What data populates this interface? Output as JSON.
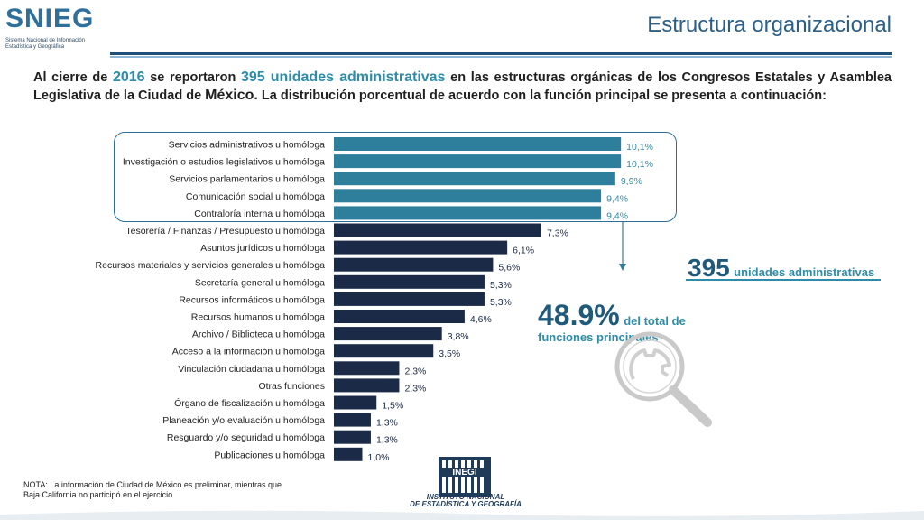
{
  "header": {
    "logo_text": "SNIEG",
    "logo_sub1": "Sistema Nacional de Información",
    "logo_sub2": "Estadística y Geográfica",
    "title": "Estructura organizacional"
  },
  "intro": {
    "p1": "Al cierre de",
    "year": "2016",
    "p2": "se reportaron",
    "units": "395 unidades administrativas",
    "p3": "en las estructuras orgánicas de los Congresos Estatales y Asamblea Legislativa de la Ciudad de",
    "p3b": "México.",
    "p4": "La distribución porcentual de acuerdo con la función principal se presenta a continuación:"
  },
  "chart_data": {
    "type": "bar",
    "orientation": "horizontal",
    "categories": [
      "Servicios administrativos u homóloga",
      "Investigación o estudios legislativos u homóloga",
      "Servicios parlamentarios u homóloga",
      "Comunicación social u homóloga",
      "Contraloría interna u homóloga",
      "Tesorería / Finanzas / Presupuesto u homóloga",
      "Asuntos jurídicos u homóloga",
      "Recursos materiales y servicios generales u homóloga",
      "Secretaría general u homóloga",
      "Recursos informáticos u homóloga",
      "Recursos humanos u homóloga",
      "Archivo / Biblioteca u homóloga",
      "Acceso a la información u homóloga",
      "Vinculación ciudadana u homóloga",
      "Otras funciones",
      "Órgano de fiscalización u homóloga",
      "Planeación y/o evaluación u homóloga",
      "Resguardo y/o seguridad u homóloga",
      "Publicaciones u homóloga"
    ],
    "values": [
      10.1,
      10.1,
      9.9,
      9.4,
      9.4,
      7.3,
      6.1,
      5.6,
      5.3,
      5.3,
      4.6,
      3.8,
      3.5,
      2.3,
      2.3,
      1.5,
      1.3,
      1.3,
      1.0
    ],
    "value_labels": [
      "10,1%",
      "10,1%",
      "9,9%",
      "9,4%",
      "9,4%",
      "7,3%",
      "6,1%",
      "5,6%",
      "5,3%",
      "5,3%",
      "4,6%",
      "3,8%",
      "3,5%",
      "2,3%",
      "2,3%",
      "1,5%",
      "1,3%",
      "1,3%",
      "1,0%"
    ],
    "highlight_count": 5,
    "colors": {
      "highlight": "#2e7f9c",
      "default": "#1b2a47",
      "highlight_label": "#2e8ca8",
      "default_label": "#1b2a47"
    },
    "title": "",
    "xlabel": "",
    "ylabel": ""
  },
  "callouts": {
    "units_number": "395",
    "units_text": "unidades administrativas",
    "share_number": "48.9%",
    "share_text1": "del total de",
    "share_text2": "funciones principales"
  },
  "note": "NOTA: La información de Ciudad de México es preliminar, mientras que Baja California no participó en el ejercicio",
  "footer": {
    "inegi_logo": "INEGI",
    "inegi_line1": "INSTITUTO NACIONAL",
    "inegi_line2": "DE ESTADÍSTICA Y GEOGRAFÍA"
  }
}
